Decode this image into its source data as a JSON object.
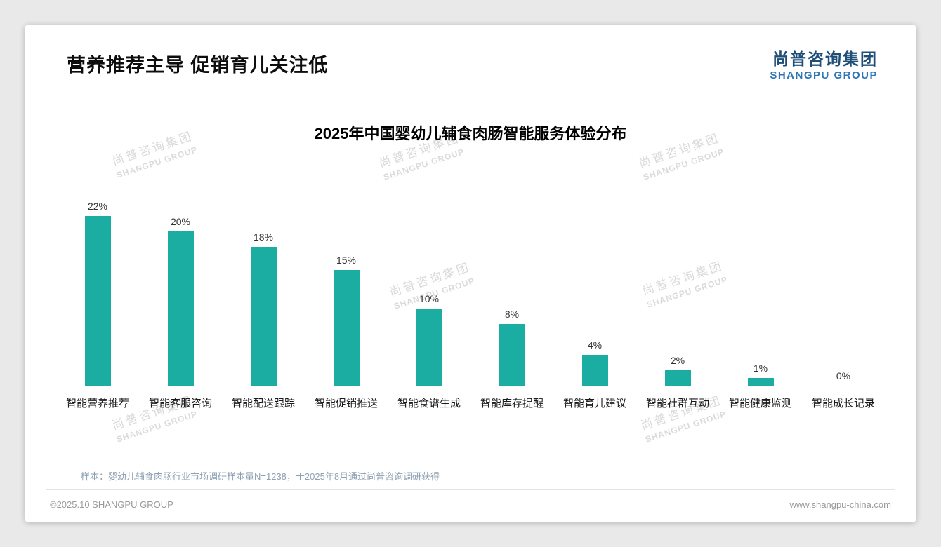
{
  "header": {
    "title": "营养推荐主导 促销育儿关注低",
    "logo_cn": "尚普咨询集团",
    "logo_en": "SHANGPU GROUP"
  },
  "watermark": {
    "cn": "尚普咨询集团",
    "en": "SHANGPU GROUP"
  },
  "colors": {
    "bar": "#1BADA1",
    "logo_cn": "#1F4E79",
    "logo_en": "#2E75B6",
    "note_text": "#8da0b3",
    "footer_text": "#9a9a9a"
  },
  "note": "样本：婴幼儿辅食肉肠行业市场调研样本量N=1238，于2025年8月通过尚普咨询调研获得",
  "footer": {
    "copyright": "©2025.10 SHANGPU GROUP",
    "website": "www.shangpu-china.com"
  },
  "chart_data": {
    "type": "bar",
    "title": "2025年中国婴幼儿辅食肉肠智能服务体验分布",
    "categories": [
      "智能营养推荐",
      "智能客服咨询",
      "智能配送跟踪",
      "智能促销推送",
      "智能食谱生成",
      "智能库存提醒",
      "智能育儿建议",
      "智能社群互动",
      "智能健康监测",
      "智能成长记录"
    ],
    "values": [
      22,
      20,
      18,
      15,
      10,
      8,
      4,
      2,
      1,
      0
    ],
    "value_labels": [
      "22%",
      "20%",
      "18%",
      "15%",
      "10%",
      "8%",
      "4%",
      "2%",
      "1%",
      "0%"
    ],
    "xlabel": "",
    "ylabel": "",
    "ylim": [
      0,
      24
    ],
    "grid": false,
    "legend": false,
    "bar_color": "#1BADA1"
  }
}
